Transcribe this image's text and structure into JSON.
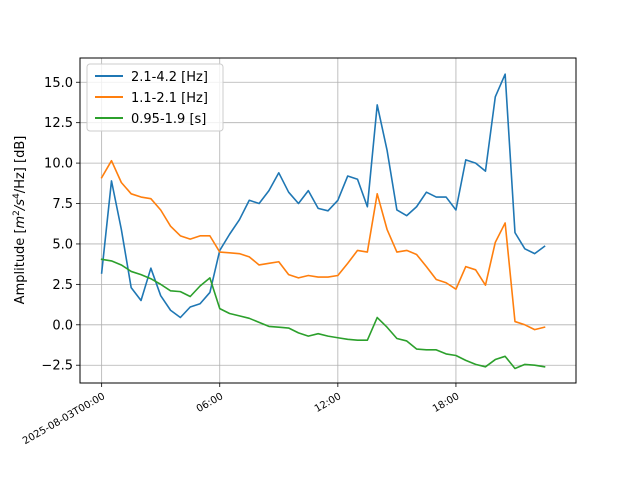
{
  "chart_data": {
    "type": "line",
    "title": "",
    "xlabel": "",
    "ylabel": "Amplitude [m²/s⁴/Hz] [dB]",
    "ylabel_parts": {
      "prefix": "Amplitude [",
      "m": "m",
      "sq": "2",
      "s": "/s",
      "four": "4",
      "hz": "/Hz] [dB]"
    },
    "x_start": "2025-08-03T00:00",
    "x_step_minutes": 30,
    "xticks": [
      {
        "x": "2025-08-03T00:00",
        "label": "2025-08-03T00:00"
      },
      {
        "x": "2025-08-03T06:00",
        "label": "06:00"
      },
      {
        "x": "2025-08-03T12:00",
        "label": "12:00"
      },
      {
        "x": "2025-08-03T18:00",
        "label": "18:00"
      }
    ],
    "yticks": [
      -2.5,
      0.0,
      2.5,
      5.0,
      7.5,
      10.0,
      12.5,
      15.0
    ],
    "ytick_labels": [
      "−2.5",
      "0.0",
      "2.5",
      "5.0",
      "7.5",
      "10.0",
      "12.5",
      "15.0"
    ],
    "ylim": [
      -3.6,
      16.5
    ],
    "xlim": [
      "2025-08-02T22:54",
      "2025-08-04T00:06"
    ],
    "grid": true,
    "legend_position": "top-left",
    "series": [
      {
        "name": "2.1-4.2 [Hz]",
        "color": "#1f77b4",
        "values": [
          3.2,
          8.9,
          5.9,
          2.3,
          1.5,
          3.5,
          1.8,
          0.9,
          0.45,
          1.1,
          1.3,
          2.0,
          4.6,
          5.6,
          6.5,
          7.7,
          7.5,
          8.3,
          9.4,
          8.2,
          7.5,
          8.3,
          7.2,
          7.05,
          7.7,
          9.2,
          9.0,
          7.3,
          13.6,
          10.8,
          7.1,
          6.75,
          7.3,
          8.2,
          7.9,
          7.9,
          7.1,
          10.2,
          10.0,
          9.5,
          14.1,
          15.5,
          5.7,
          4.7,
          4.4,
          4.85
        ]
      },
      {
        "name": "1.1-2.1 [Hz]",
        "color": "#ff7f0e",
        "values": [
          9.1,
          10.15,
          8.8,
          8.1,
          7.9,
          7.8,
          7.1,
          6.1,
          5.5,
          5.3,
          5.5,
          5.5,
          4.5,
          4.45,
          4.4,
          4.2,
          3.7,
          3.8,
          3.9,
          3.1,
          2.9,
          3.05,
          2.95,
          2.95,
          3.05,
          3.8,
          4.6,
          4.5,
          8.1,
          5.9,
          4.5,
          4.6,
          4.35,
          3.6,
          2.8,
          2.6,
          2.2,
          3.6,
          3.4,
          2.45,
          5.1,
          6.3,
          0.2,
          0.0,
          -0.3,
          -0.15
        ]
      },
      {
        "name": "0.95-1.9 [s]",
        "color": "#2ca02c",
        "values": [
          4.05,
          3.95,
          3.7,
          3.3,
          3.1,
          2.85,
          2.5,
          2.1,
          2.05,
          1.75,
          2.4,
          2.9,
          1.0,
          0.7,
          0.55,
          0.4,
          0.15,
          -0.1,
          -0.15,
          -0.2,
          -0.5,
          -0.7,
          -0.55,
          -0.7,
          -0.8,
          -0.9,
          -0.95,
          -0.95,
          0.45,
          -0.15,
          -0.85,
          -1.0,
          -1.5,
          -1.55,
          -1.55,
          -1.8,
          -1.9,
          -2.2,
          -2.45,
          -2.6,
          -2.15,
          -1.95,
          -2.7,
          -2.45,
          -2.5,
          -2.6
        ]
      }
    ]
  }
}
